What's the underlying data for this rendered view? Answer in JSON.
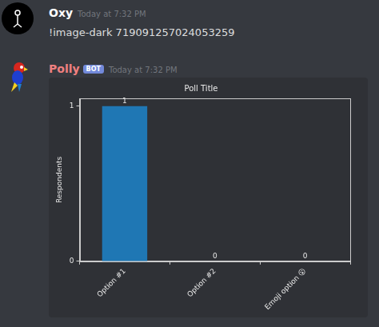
{
  "messages": [
    {
      "author": "Oxy",
      "timestamp": "Today at 7:32 PM",
      "text": "!image-dark 719091257024053259"
    },
    {
      "author": "Polly",
      "badge": "BOT",
      "timestamp": "Today at 7:32 PM"
    }
  ],
  "chart_data": {
    "type": "bar",
    "title": "Poll Title",
    "y_label": "Respondents",
    "categories": [
      "Option #1",
      "Option #2",
      "Emoji option 😮"
    ],
    "values": [
      1,
      0,
      0
    ],
    "color": "#1f77b4",
    "ylim": [
      0,
      1.05
    ],
    "yticks": [
      0,
      1
    ],
    "grid": false,
    "data_labels": true
  }
}
